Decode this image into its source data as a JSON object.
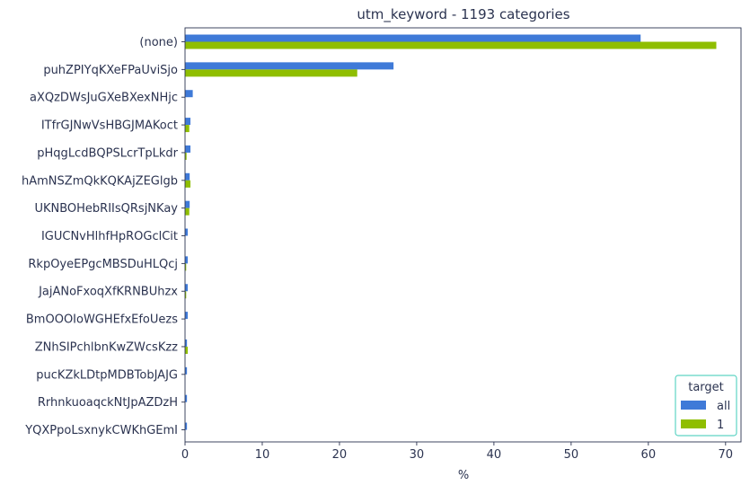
{
  "chart_data": {
    "type": "bar",
    "orientation": "horizontal",
    "title": "utm_keyword - 1193 categories",
    "xlabel": "%",
    "ylabel": "",
    "xlim": [
      0,
      72
    ],
    "xticks": [
      0,
      10,
      20,
      30,
      40,
      50,
      60,
      70
    ],
    "grid": false,
    "legend": {
      "title": "target",
      "placement": "bottom-right"
    },
    "categories": [
      "(none)",
      "puhZPIYqKXeFPaUviSjo",
      "aXQzDWsJuGXeBXexNHjc",
      "ITfrGJNwVsHBGJMAKoct",
      "pHqgLcdBQPSLcrTpLkdr",
      "hAmNSZmQkKQKAjZEGlgb",
      "UKNBOHebRIIsQRsjNKay",
      "IGUCNvHlhfHpROGclCit",
      "RkpOyeEPgcMBSDuHLQcj",
      "JajANoFxoqXfKRNBUhzx",
      "BmOOOIoWGHEfxEfoUezs",
      "ZNhSIPchlbnKwZWcsKzz",
      "pucKZkLDtpMDBTobJAJG",
      "RrhnkuoaqckNtJpAZDzH",
      "YQXPpoLsxnykCWKhGEmI"
    ],
    "series": [
      {
        "name": "all",
        "color": "#3f7ad8",
        "values": [
          59.0,
          27.0,
          1.0,
          0.7,
          0.7,
          0.6,
          0.6,
          0.35,
          0.35,
          0.35,
          0.35,
          0.25,
          0.25,
          0.25,
          0.25
        ]
      },
      {
        "name": "1",
        "color": "#8fbe00",
        "values": [
          68.8,
          22.3,
          0.0,
          0.55,
          0.2,
          0.7,
          0.55,
          0.0,
          0.15,
          0.15,
          0.0,
          0.35,
          0.0,
          0.0,
          0.0
        ]
      }
    ]
  }
}
